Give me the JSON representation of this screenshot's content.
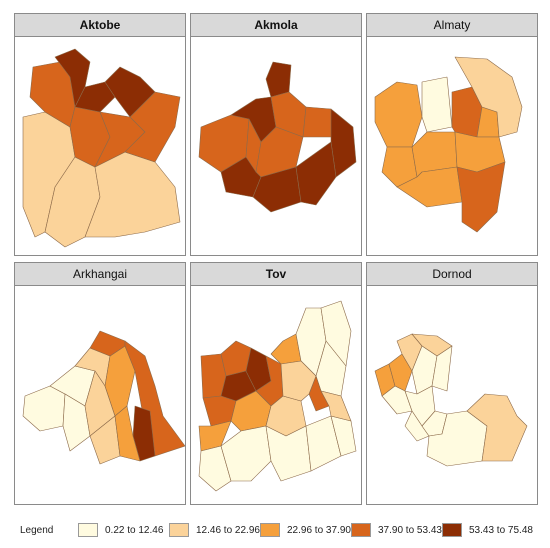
{
  "colors": {
    "c1": "#fffbe0",
    "c2": "#fbd39a",
    "c3": "#f5a03c",
    "c4": "#d7651c",
    "c5": "#8c2d04"
  },
  "panels": [
    {
      "title": "Aktobe"
    },
    {
      "title": "Akmola"
    },
    {
      "title": "Almaty"
    },
    {
      "title": "Arkhangai"
    },
    {
      "title": "Tov"
    },
    {
      "title": "Dornod"
    }
  ],
  "legend": {
    "title": "Legend",
    "items": [
      {
        "label": "0.22 to 12.46",
        "color": "#fffbe0"
      },
      {
        "label": "12.46 to 22.96",
        "color": "#fbd39a"
      },
      {
        "label": "22.96 to 37.90",
        "color": "#f5a03c"
      },
      {
        "label": "37.90 to 53.43",
        "color": "#d7651c"
      },
      {
        "label": "53.43 to 75.48",
        "color": "#8c2d04"
      }
    ]
  }
}
